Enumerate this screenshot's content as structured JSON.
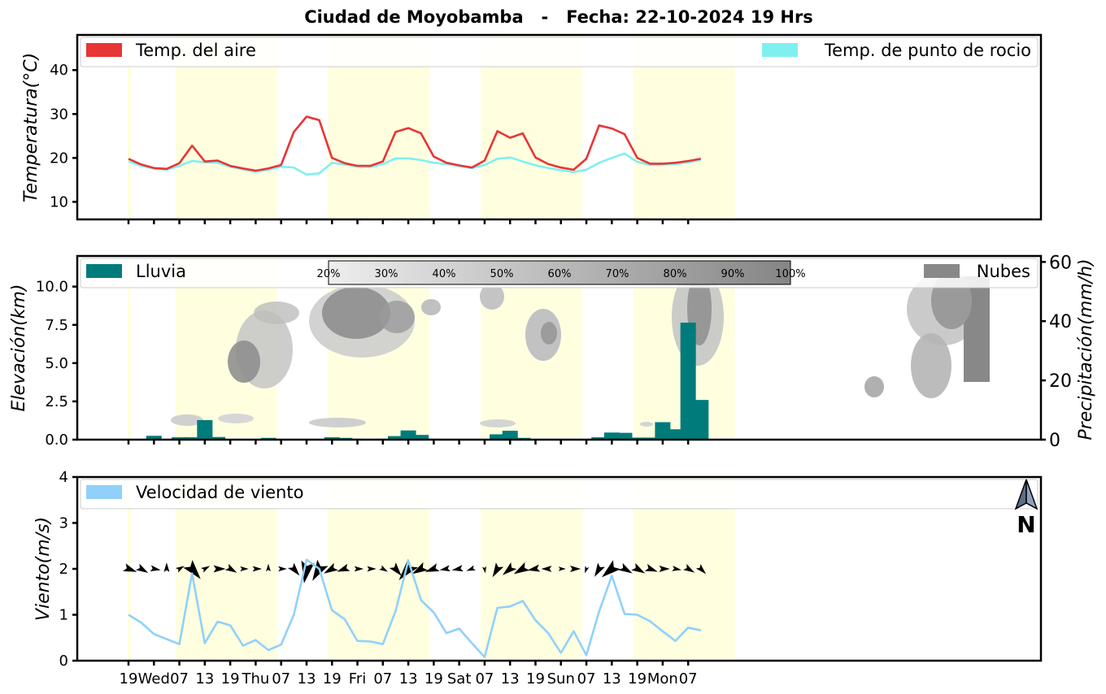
{
  "title": "Ciudad de Moyobamba   -   Fecha: 22-10-2024 19 Hrs",
  "x_tick_labels": [
    "19",
    "Wed",
    "07",
    "13",
    "19",
    "Thu",
    "07",
    "13",
    "19",
    "Fri",
    "07",
    "13",
    "19",
    "Sat",
    "07",
    "13",
    "19",
    "Sun",
    "07",
    "13",
    "19",
    "Mon",
    "07"
  ],
  "colors": {
    "air_temp": "#e83535",
    "dew_point": "#7ff0f0",
    "rain": "#007b7b",
    "clouds": "#888888",
    "wind_speed": "#8fd1fb",
    "daytime_band": "#ffffe0",
    "wind_arrow": "#000000"
  },
  "chart_data": [
    {
      "type": "line",
      "ylabel": "Temperatura(°C)",
      "ylim": [
        6,
        48
      ],
      "yticks": [
        "10",
        "20",
        "30",
        "40"
      ],
      "x": [
        "19",
        "22",
        "Wed",
        "04",
        "07",
        "10",
        "13",
        "16",
        "19",
        "22",
        "Thu",
        "04",
        "07",
        "10",
        "13",
        "16",
        "19",
        "22",
        "Fri",
        "04",
        "07",
        "10",
        "13",
        "16",
        "19",
        "22",
        "Sat",
        "04",
        "07",
        "10",
        "13",
        "16",
        "19",
        "22",
        "Sun",
        "04",
        "07",
        "10",
        "13",
        "16",
        "19",
        "22",
        "Mon",
        "04",
        "07",
        "10"
      ],
      "series": [
        {
          "name": "Temp. del aire",
          "values": [
            19.8,
            18.5,
            17.7,
            17.5,
            18.8,
            22.8,
            19.2,
            19.4,
            18.2,
            17.6,
            17.1,
            17.6,
            18.4,
            25.9,
            29.4,
            28.6,
            20.0,
            18.8,
            18.2,
            18.2,
            19.2,
            25.9,
            26.8,
            25.6,
            20.3,
            18.9,
            18.3,
            17.8,
            19.4,
            26.1,
            24.6,
            25.6,
            20.1,
            18.6,
            17.8,
            17.3,
            19.8,
            27.4,
            26.7,
            25.4,
            20.0,
            18.7,
            18.7,
            18.9,
            19.3,
            19.8
          ]
        },
        {
          "name": "Temp. de punto de rocio",
          "values": [
            19.2,
            18.2,
            17.6,
            17.3,
            18.2,
            19.3,
            19.0,
            18.9,
            18.0,
            17.4,
            16.8,
            17.3,
            18.0,
            17.8,
            16.2,
            16.5,
            18.9,
            18.5,
            18.0,
            17.9,
            18.6,
            19.9,
            19.9,
            19.5,
            18.9,
            18.6,
            18.1,
            17.7,
            18.4,
            19.8,
            20.1,
            19.2,
            18.3,
            17.7,
            17.2,
            16.8,
            17.3,
            18.9,
            20.0,
            21.0,
            19.1,
            18.4,
            18.5,
            18.6,
            19.0,
            19.5
          ]
        }
      ],
      "legend": "top"
    },
    {
      "type": "bar",
      "ylabel": "Elevación(km)",
      "ylabel_right": "Precipitación(mm/h)",
      "ylim": [
        0,
        12
      ],
      "ylim_right": [
        0,
        62
      ],
      "yticks": [
        "0.0",
        "2.5",
        "5.0",
        "7.5",
        "10.0"
      ],
      "yticks_right": [
        "0",
        "20",
        "40",
        "60"
      ],
      "categories": [
        "19",
        "22",
        "Wed",
        "04",
        "07",
        "10",
        "13",
        "16",
        "19",
        "22",
        "Thu",
        "04",
        "07",
        "10",
        "13",
        "16",
        "19",
        "22",
        "Fri",
        "04",
        "07",
        "10",
        "13",
        "16",
        "19",
        "22",
        "Sat",
        "04",
        "07",
        "10",
        "13",
        "16",
        "19",
        "22",
        "Sun",
        "04",
        "07",
        "10",
        "13",
        "16",
        "19",
        "22",
        "Mon",
        "04",
        "07",
        "10"
      ],
      "series": [
        {
          "name": "Lluvia",
          "values": [
            0,
            0,
            1.3,
            0,
            0.8,
            0.8,
            6.6,
            0.9,
            0,
            0,
            0,
            0.6,
            0,
            0,
            0,
            0,
            0.8,
            0.6,
            0.3,
            0,
            0.3,
            1.2,
            3.1,
            1.6,
            0.3,
            0.2,
            0,
            0,
            0,
            1.8,
            3.0,
            0.6,
            0,
            0,
            0,
            0,
            0,
            0.8,
            2.4,
            2.3,
            0.7,
            0.7,
            5.9,
            3.5,
            39.5,
            13.4
          ]
        }
      ],
      "clouds_legend": "Nubes",
      "cloud_colorbar": [
        "20%",
        "30%",
        "40%",
        "50%",
        "60%",
        "70%",
        "80%",
        "90%",
        "100%"
      ],
      "legend": "top"
    },
    {
      "type": "line",
      "ylabel": "Viento(m/s)",
      "ylim": [
        0,
        4
      ],
      "yticks": [
        "0",
        "1",
        "2",
        "3",
        "4"
      ],
      "x": [
        "19",
        "22",
        "Wed",
        "04",
        "07",
        "10",
        "13",
        "16",
        "19",
        "22",
        "Thu",
        "04",
        "07",
        "10",
        "13",
        "16",
        "19",
        "22",
        "Fri",
        "04",
        "07",
        "10",
        "13",
        "16",
        "19",
        "22",
        "Sat",
        "04",
        "07",
        "10",
        "13",
        "16",
        "19",
        "22",
        "Sun",
        "04",
        "07",
        "10",
        "13",
        "16",
        "19",
        "22",
        "Mon",
        "04",
        "07",
        "10"
      ],
      "series": [
        {
          "name": "Velocidad de viento",
          "values": [
            1.0,
            0.83,
            0.58,
            0.47,
            0.36,
            1.9,
            0.38,
            0.85,
            0.77,
            0.33,
            0.45,
            0.23,
            0.35,
            1.0,
            2.2,
            2.0,
            1.1,
            0.9,
            0.43,
            0.42,
            0.36,
            1.08,
            2.18,
            1.32,
            1.05,
            0.6,
            0.7,
            0.38,
            0.08,
            1.15,
            1.18,
            1.3,
            0.88,
            0.6,
            0.17,
            0.64,
            0.12,
            1.07,
            1.85,
            1.02,
            1.0,
            0.86,
            0.64,
            0.43,
            0.72,
            0.66
          ]
        }
      ],
      "wind_direction_deg": [
        110,
        120,
        100,
        0,
        60,
        140,
        60,
        90,
        120,
        90,
        90,
        0,
        90,
        140,
        190,
        210,
        240,
        250,
        90,
        90,
        120,
        140,
        220,
        240,
        250,
        260,
        260,
        250,
        170,
        210,
        230,
        240,
        260,
        270,
        90,
        90,
        200,
        210,
        230,
        120,
        120,
        110,
        90,
        100,
        120,
        135
      ],
      "north_label": "N",
      "legend": "top"
    }
  ]
}
